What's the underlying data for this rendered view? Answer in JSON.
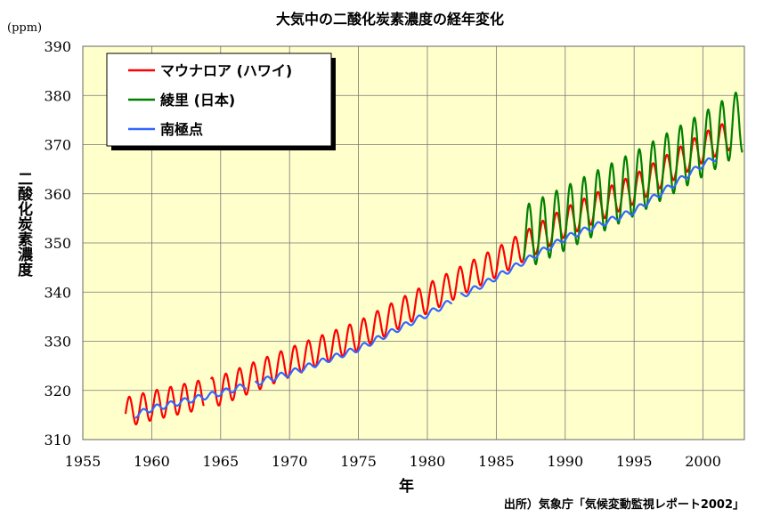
{
  "title": "大気中の二酸化炭素濃度の経年変化",
  "unit_label": "(ppm)",
  "ylabel": "二酸化炭素濃度",
  "xlabel": "年",
  "source": "出所）気象庁「気候変動監視レポート2002」",
  "chart_data": {
    "type": "line",
    "title": "大気中の二酸化炭素濃度の経年変化",
    "xlabel": "年",
    "ylabel": "二酸化炭素濃度",
    "xlim": [
      1955,
      2003
    ],
    "ylim": [
      310,
      390
    ],
    "xticks": [
      1955,
      1960,
      1965,
      1970,
      1975,
      1980,
      1985,
      1990,
      1995,
      2000
    ],
    "yticks": [
      310,
      320,
      330,
      340,
      350,
      360,
      370,
      380,
      390
    ],
    "grid": true,
    "legend_position": "top-left",
    "series": [
      {
        "name": "マウナロア (ハワイ)",
        "color": "#ff0000",
        "seasonal_amplitude_ppm": 6,
        "trend_points": [
          [
            1958.2,
            315.6
          ],
          [
            1960,
            316.9
          ],
          [
            1965,
            320.0
          ],
          [
            1970,
            325.7
          ],
          [
            1975,
            331.1
          ],
          [
            1980,
            338.7
          ],
          [
            1985,
            346.0
          ],
          [
            1990,
            354.2
          ],
          [
            1995,
            360.9
          ],
          [
            2000,
            369.4
          ],
          [
            2002.0,
            372.0
          ]
        ],
        "segments": [
          [
            1958.1,
            1963.8
          ],
          [
            1964.3,
            2002.0
          ]
        ]
      },
      {
        "name": "綾里 (日本)",
        "color": "#008000",
        "seasonal_amplitude_ppm": 13,
        "trend_points": [
          [
            1987.0,
            351.0
          ],
          [
            1990,
            355.0
          ],
          [
            1995,
            362.0
          ],
          [
            2000,
            370.0
          ],
          [
            2002.9,
            375.0
          ]
        ],
        "segments": [
          [
            1987.0,
            2002.9
          ]
        ]
      },
      {
        "name": "南極点",
        "color": "#3366ff",
        "seasonal_amplitude_ppm": 1.2,
        "trend_points": [
          [
            1958.8,
            315.0
          ],
          [
            1960,
            316.3
          ],
          [
            1965,
            319.5
          ],
          [
            1970,
            323.5
          ],
          [
            1975,
            328.5
          ],
          [
            1980,
            335.5
          ],
          [
            1985,
            343.0
          ],
          [
            1990,
            351.0
          ],
          [
            1995,
            356.5
          ],
          [
            2000,
            366.0
          ],
          [
            2001.0,
            367.5
          ]
        ],
        "segments": [
          [
            1958.8,
            1966.9
          ],
          [
            1967.5,
            1981.8
          ],
          [
            1982.4,
            2001.0
          ]
        ]
      }
    ]
  }
}
